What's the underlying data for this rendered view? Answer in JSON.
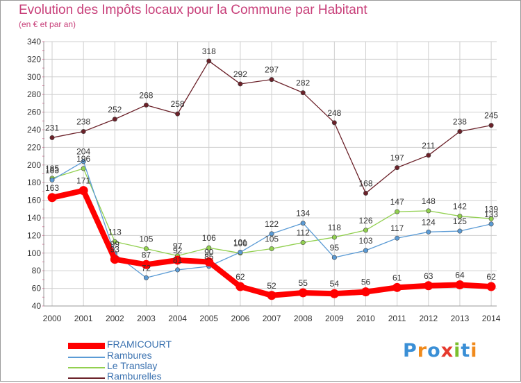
{
  "title": "Evolution des Impôts locaux pour la Commune par Habitant",
  "subtitle": "(en € et par an)",
  "brand": "Proxiti",
  "colors": {
    "title": "#c8407a",
    "framicourt": "#ff0000",
    "rambures": "#5b9bd5",
    "le_translay": "#92d050",
    "ramburelles": "#6b2129",
    "grid": "#cfcfcf",
    "axis_text": "#333333"
  },
  "chart_data": {
    "type": "line",
    "title": "Evolution des Impôts locaux pour la Commune par Habitant",
    "ylabel": "(en € et par an)",
    "xlabel": "",
    "ylim": [
      40,
      340
    ],
    "yticks": [
      40,
      60,
      80,
      100,
      120,
      140,
      160,
      180,
      200,
      220,
      240,
      260,
      280,
      300,
      320,
      340
    ],
    "x": [
      "2000",
      "2001",
      "2002",
      "2003",
      "2004",
      "2005",
      "2006",
      "2007",
      "2008",
      "2009",
      "2010",
      "2011",
      "2012",
      "2013",
      "2014"
    ],
    "series": [
      {
        "name": "FRAMICOURT",
        "key": "framicourt",
        "values": [
          163,
          171,
          93,
          87,
          92,
          90,
          62,
          52,
          55,
          54,
          56,
          61,
          63,
          64,
          62
        ]
      },
      {
        "name": "Rambures",
        "key": "rambures",
        "values": [
          183,
          204,
          99,
          72,
          81,
          85,
          101,
          122,
          134,
          95,
          103,
          117,
          124,
          125,
          133
        ]
      },
      {
        "name": "Le Translay",
        "key": "le_translay",
        "values": [
          185,
          196,
          113,
          105,
          97,
          106,
          100,
          105,
          112,
          118,
          126,
          147,
          148,
          142,
          139
        ]
      },
      {
        "name": "Ramburelles",
        "key": "ramburelles",
        "values": [
          231,
          238,
          252,
          268,
          258,
          318,
          292,
          297,
          282,
          248,
          168,
          197,
          211,
          238,
          245
        ]
      }
    ],
    "labels": {
      "framicourt": [
        "163",
        "171",
        "93",
        "87",
        "92",
        "90",
        "62",
        "52",
        "55",
        "54",
        "56",
        "61",
        "63",
        "64",
        "62"
      ],
      "rambures": [
        "183",
        "204",
        "99",
        "72",
        "81",
        "85",
        "101",
        "122",
        "134",
        "95",
        "103",
        "117",
        "124",
        "125",
        "133"
      ],
      "le_translay": [
        "185",
        "196",
        "113",
        "105",
        "97",
        "106",
        "100",
        "105",
        "112",
        "118",
        "126",
        "147",
        "148",
        "142",
        "139"
      ],
      "ramburelles": [
        "231",
        "238",
        "252",
        "268",
        "258",
        "318",
        "292",
        "297",
        "282",
        "248",
        "168",
        "197",
        "211",
        "238",
        "245"
      ]
    },
    "legend": [
      "FRAMICOURT",
      "Rambures",
      "Le Translay",
      "Ramburelles"
    ],
    "legend_position": "bottom-left",
    "grid": true
  }
}
